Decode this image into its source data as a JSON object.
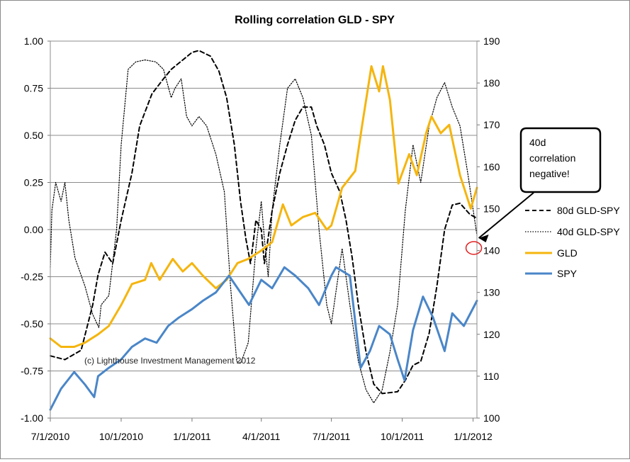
{
  "chart_data": {
    "type": "line",
    "title": "Rolling correlation GLD - SPY",
    "xlabel": "",
    "ylabel": "",
    "y_left_lim": [
      -1.0,
      1.0
    ],
    "y_right_lim": [
      100,
      190
    ],
    "x_range": [
      "2010-07-01",
      "2012-01-06"
    ],
    "x_ticks": [
      "7/1/2010",
      "10/1/2010",
      "1/1/2011",
      "4/1/2011",
      "7/1/2011",
      "10/1/2011",
      "1/1/2012"
    ],
    "y_left_ticks": [
      "1.00",
      "0.75",
      "0.50",
      "0.25",
      "0.00",
      "-0.25",
      "-0.50",
      "-0.75",
      "-1.00"
    ],
    "y_right_ticks": [
      "190",
      "180",
      "170",
      "160",
      "150",
      "140",
      "130",
      "120",
      "110",
      "100"
    ],
    "grid": true,
    "legend_position": "right",
    "watermark": "(c) Lighthouse Investment Management 2012",
    "callout": {
      "text_lines": [
        "40d",
        "correlation",
        "negative!"
      ]
    },
    "series": [
      {
        "name": "80d GLD-SPY",
        "axis": "left",
        "color": "#000000",
        "style": "dashed",
        "points": [
          [
            "2010-07-01",
            -0.67
          ],
          [
            "2010-07-20",
            -0.69
          ],
          [
            "2010-08-10",
            -0.64
          ],
          [
            "2010-08-25",
            -0.4
          ],
          [
            "2010-09-01",
            -0.24
          ],
          [
            "2010-09-10",
            -0.12
          ],
          [
            "2010-09-20",
            -0.18
          ],
          [
            "2010-10-01",
            0.05
          ],
          [
            "2010-10-15",
            0.3
          ],
          [
            "2010-10-25",
            0.55
          ],
          [
            "2010-11-10",
            0.72
          ],
          [
            "2010-11-25",
            0.8
          ],
          [
            "2010-12-05",
            0.85
          ],
          [
            "2010-12-20",
            0.9
          ],
          [
            "2011-01-01",
            0.94
          ],
          [
            "2011-01-10",
            0.95
          ],
          [
            "2011-01-25",
            0.92
          ],
          [
            "2011-02-05",
            0.84
          ],
          [
            "2011-02-15",
            0.7
          ],
          [
            "2011-02-25",
            0.45
          ],
          [
            "2011-03-05",
            0.15
          ],
          [
            "2011-03-12",
            -0.05
          ],
          [
            "2011-03-18",
            -0.18
          ],
          [
            "2011-03-22",
            -0.05
          ],
          [
            "2011-03-25",
            0.05
          ],
          [
            "2011-04-01",
            0.0
          ],
          [
            "2011-04-05",
            -0.18
          ],
          [
            "2011-04-15",
            0.1
          ],
          [
            "2011-04-25",
            0.3
          ],
          [
            "2011-05-05",
            0.45
          ],
          [
            "2011-05-15",
            0.58
          ],
          [
            "2011-05-25",
            0.65
          ],
          [
            "2011-06-05",
            0.65
          ],
          [
            "2011-06-12",
            0.55
          ],
          [
            "2011-06-22",
            0.45
          ],
          [
            "2011-07-01",
            0.3
          ],
          [
            "2011-07-12",
            0.2
          ],
          [
            "2011-07-20",
            0.05
          ],
          [
            "2011-07-28",
            -0.15
          ],
          [
            "2011-08-05",
            -0.4
          ],
          [
            "2011-08-15",
            -0.65
          ],
          [
            "2011-08-25",
            -0.82
          ],
          [
            "2011-09-05",
            -0.87
          ],
          [
            "2011-09-25",
            -0.86
          ],
          [
            "2011-10-05",
            -0.8
          ],
          [
            "2011-10-15",
            -0.72
          ],
          [
            "2011-10-25",
            -0.7
          ],
          [
            "2011-11-05",
            -0.55
          ],
          [
            "2011-11-15",
            -0.3
          ],
          [
            "2011-11-25",
            0.0
          ],
          [
            "2011-12-05",
            0.13
          ],
          [
            "2011-12-15",
            0.14
          ],
          [
            "2011-12-28",
            0.08
          ],
          [
            "2012-01-06",
            0.06
          ]
        ]
      },
      {
        "name": "40d GLD-SPY",
        "axis": "left",
        "color": "#000000",
        "style": "dotted",
        "points": [
          [
            "2010-07-01",
            -0.2
          ],
          [
            "2010-07-03",
            0.1
          ],
          [
            "2010-07-08",
            0.25
          ],
          [
            "2010-07-15",
            0.15
          ],
          [
            "2010-07-20",
            0.25
          ],
          [
            "2010-07-25",
            0.05
          ],
          [
            "2010-08-02",
            -0.15
          ],
          [
            "2010-08-15",
            -0.3
          ],
          [
            "2010-08-25",
            -0.45
          ],
          [
            "2010-09-02",
            -0.52
          ],
          [
            "2010-09-05",
            -0.4
          ],
          [
            "2010-09-15",
            -0.35
          ],
          [
            "2010-09-25",
            0.0
          ],
          [
            "2010-10-01",
            0.45
          ],
          [
            "2010-10-10",
            0.85
          ],
          [
            "2010-10-20",
            0.89
          ],
          [
            "2010-11-01",
            0.9
          ],
          [
            "2010-11-15",
            0.89
          ],
          [
            "2010-11-25",
            0.85
          ],
          [
            "2010-12-05",
            0.7
          ],
          [
            "2010-12-10",
            0.75
          ],
          [
            "2010-12-18",
            0.8
          ],
          [
            "2010-12-25",
            0.6
          ],
          [
            "2011-01-01",
            0.55
          ],
          [
            "2011-01-10",
            0.6
          ],
          [
            "2011-01-20",
            0.55
          ],
          [
            "2011-02-01",
            0.4
          ],
          [
            "2011-02-12",
            0.2
          ],
          [
            "2011-02-20",
            -0.3
          ],
          [
            "2011-02-28",
            -0.7
          ],
          [
            "2011-03-05",
            -0.71
          ],
          [
            "2011-03-15",
            -0.6
          ],
          [
            "2011-03-25",
            -0.1
          ],
          [
            "2011-04-01",
            0.15
          ],
          [
            "2011-04-05",
            -0.05
          ],
          [
            "2011-04-10",
            -0.25
          ],
          [
            "2011-04-15",
            0.1
          ],
          [
            "2011-04-25",
            0.45
          ],
          [
            "2011-05-05",
            0.75
          ],
          [
            "2011-05-15",
            0.8
          ],
          [
            "2011-05-25",
            0.7
          ],
          [
            "2011-06-05",
            0.5
          ],
          [
            "2011-06-15",
            0.0
          ],
          [
            "2011-06-25",
            -0.4
          ],
          [
            "2011-07-01",
            -0.5
          ],
          [
            "2011-07-08",
            -0.3
          ],
          [
            "2011-07-15",
            -0.1
          ],
          [
            "2011-07-25",
            -0.4
          ],
          [
            "2011-08-05",
            -0.7
          ],
          [
            "2011-08-15",
            -0.85
          ],
          [
            "2011-08-25",
            -0.92
          ],
          [
            "2011-09-05",
            -0.85
          ],
          [
            "2011-09-15",
            -0.65
          ],
          [
            "2011-09-25",
            -0.4
          ],
          [
            "2011-10-05",
            0.1
          ],
          [
            "2011-10-15",
            0.45
          ],
          [
            "2011-10-25",
            0.25
          ],
          [
            "2011-11-05",
            0.55
          ],
          [
            "2011-11-15",
            0.7
          ],
          [
            "2011-11-25",
            0.78
          ],
          [
            "2011-12-05",
            0.65
          ],
          [
            "2011-12-15",
            0.55
          ],
          [
            "2011-12-25",
            0.3
          ],
          [
            "2012-01-06",
            -0.03
          ]
        ]
      },
      {
        "name": "GLD",
        "axis": "right",
        "color": "#F5B50E",
        "style": "solid",
        "points": [
          [
            "2010-07-01",
            119
          ],
          [
            "2010-07-15",
            117
          ],
          [
            "2010-08-01",
            117
          ],
          [
            "2010-08-15",
            118
          ],
          [
            "2010-09-01",
            120
          ],
          [
            "2010-09-15",
            122
          ],
          [
            "2010-10-01",
            127
          ],
          [
            "2010-10-15",
            132
          ],
          [
            "2010-11-01",
            133
          ],
          [
            "2010-11-09",
            137
          ],
          [
            "2010-11-20",
            133
          ],
          [
            "2010-12-07",
            138
          ],
          [
            "2010-12-20",
            135
          ],
          [
            "2011-01-01",
            137
          ],
          [
            "2011-01-15",
            134
          ],
          [
            "2011-02-01",
            131
          ],
          [
            "2011-02-15",
            133
          ],
          [
            "2011-03-01",
            137
          ],
          [
            "2011-03-15",
            138
          ],
          [
            "2011-04-01",
            140
          ],
          [
            "2011-04-15",
            142
          ],
          [
            "2011-04-29",
            151
          ],
          [
            "2011-05-10",
            146
          ],
          [
            "2011-05-25",
            148
          ],
          [
            "2011-06-10",
            149
          ],
          [
            "2011-06-25",
            145
          ],
          [
            "2011-07-01",
            146
          ],
          [
            "2011-07-15",
            155
          ],
          [
            "2011-08-01",
            159
          ],
          [
            "2011-08-10",
            170
          ],
          [
            "2011-08-22",
            184
          ],
          [
            "2011-09-01",
            178
          ],
          [
            "2011-09-06",
            184
          ],
          [
            "2011-09-15",
            176
          ],
          [
            "2011-09-26",
            156
          ],
          [
            "2011-10-10",
            163
          ],
          [
            "2011-10-20",
            158
          ],
          [
            "2011-11-01",
            168
          ],
          [
            "2011-11-08",
            172
          ],
          [
            "2011-11-20",
            168
          ],
          [
            "2011-12-01",
            170
          ],
          [
            "2011-12-15",
            158
          ],
          [
            "2011-12-29",
            150
          ],
          [
            "2012-01-06",
            155
          ]
        ]
      },
      {
        "name": "SPY",
        "axis": "right",
        "color": "#4A86C8",
        "style": "solid",
        "points": [
          [
            "2010-07-01",
            102
          ],
          [
            "2010-07-15",
            107
          ],
          [
            "2010-08-01",
            111
          ],
          [
            "2010-08-15",
            108
          ],
          [
            "2010-08-27",
            105
          ],
          [
            "2010-09-01",
            110
          ],
          [
            "2010-09-15",
            112
          ],
          [
            "2010-10-01",
            114
          ],
          [
            "2010-10-15",
            117
          ],
          [
            "2010-11-01",
            119
          ],
          [
            "2010-11-16",
            118
          ],
          [
            "2010-12-01",
            122
          ],
          [
            "2010-12-15",
            124
          ],
          [
            "2011-01-01",
            126
          ],
          [
            "2011-01-15",
            128
          ],
          [
            "2011-02-01",
            130
          ],
          [
            "2011-02-18",
            134
          ],
          [
            "2011-03-16",
            127
          ],
          [
            "2011-04-01",
            133
          ],
          [
            "2011-04-15",
            131
          ],
          [
            "2011-05-01",
            136
          ],
          [
            "2011-05-15",
            134
          ],
          [
            "2011-06-01",
            131
          ],
          [
            "2011-06-15",
            127
          ],
          [
            "2011-07-01",
            134
          ],
          [
            "2011-07-07",
            136
          ],
          [
            "2011-07-25",
            134
          ],
          [
            "2011-08-08",
            112
          ],
          [
            "2011-08-20",
            116
          ],
          [
            "2011-09-01",
            122
          ],
          [
            "2011-09-15",
            120
          ],
          [
            "2011-09-25",
            114
          ],
          [
            "2011-10-04",
            109
          ],
          [
            "2011-10-15",
            121
          ],
          [
            "2011-10-28",
            129
          ],
          [
            "2011-11-10",
            124
          ],
          [
            "2011-11-25",
            116
          ],
          [
            "2011-12-05",
            125
          ],
          [
            "2011-12-20",
            122
          ],
          [
            "2012-01-06",
            128
          ]
        ]
      }
    ]
  }
}
